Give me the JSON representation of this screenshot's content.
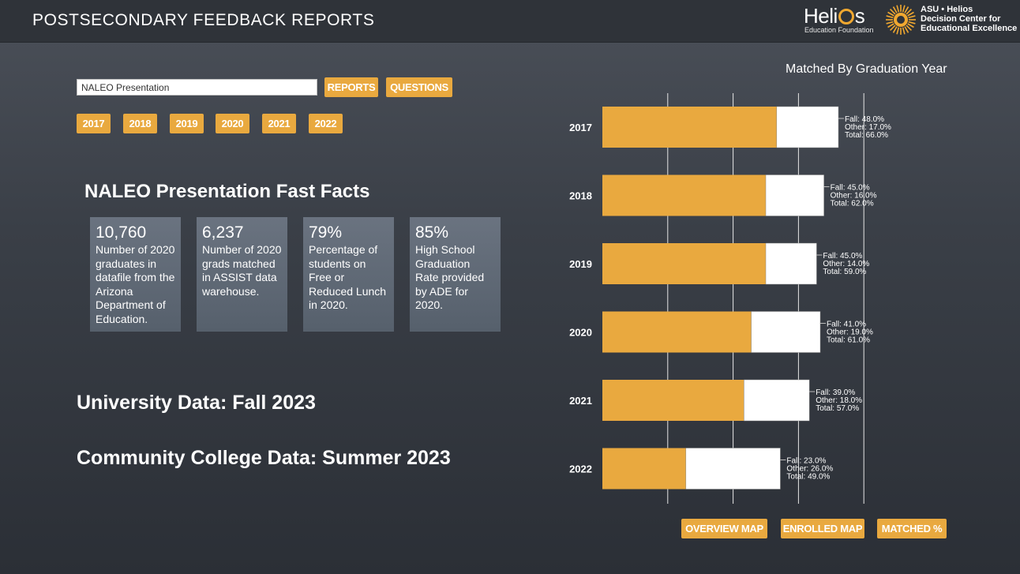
{
  "header": {
    "title": "POSTSECONDARY FEEDBACK REPORTS",
    "helios_logo_text": "Helios",
    "helios_subtitle": "Education Foundation",
    "asu_logo_text": "ASU • Helios Decision Center for Educational Excellence",
    "asu_line1": "ASU • Helios",
    "asu_line2": "Decision Center for",
    "asu_line3": "Educational Excellence"
  },
  "search": {
    "value": "NALEO Presentation"
  },
  "buttons": {
    "reports": "REPORTS",
    "questions": "QUESTIONS"
  },
  "year_buttons": [
    "2017",
    "2018",
    "2019",
    "2020",
    "2021",
    "2022"
  ],
  "fast_facts": {
    "title": "NALEO Presentation Fast Facts",
    "cards": [
      {
        "value": "10,760",
        "desc": "Number of 2020 graduates in datafile from the Arizona Department of Education."
      },
      {
        "value": "6,237",
        "desc": "Number of 2020 grads matched in ASSIST data warehouse."
      },
      {
        "value": "79%",
        "desc": "Percentage of students on Free or Reduced Lunch in 2020."
      },
      {
        "value": "85%",
        "desc": "High School Graduation Rate provided by ADE for 2020."
      }
    ]
  },
  "sections": {
    "university": "University Data: Fall 2023",
    "community_college": "Community College Data: Summer 2023"
  },
  "bottom_buttons": {
    "overview_map": "OVERVIEW MAP",
    "enrolled_map": "ENROLLED MAP",
    "matched_pct": "MATCHED %"
  },
  "colors": {
    "accent": "#e9a93f",
    "bar_fall": "#e9a93f",
    "bar_other": "#ffffff",
    "header_bg": "#2f3339"
  },
  "chart_data": {
    "type": "bar",
    "orientation": "horizontal",
    "stacked": true,
    "title": "Matched By Graduation Year",
    "categories": [
      "2017",
      "2018",
      "2019",
      "2020",
      "2021",
      "2022"
    ],
    "series": [
      {
        "name": "Fall",
        "values": [
          48.0,
          45.0,
          45.0,
          41.0,
          39.0,
          23.0
        ]
      },
      {
        "name": "Other",
        "values": [
          17.0,
          16.0,
          14.0,
          19.0,
          18.0,
          26.0
        ]
      }
    ],
    "totals": [
      66.0,
      62.0,
      59.0,
      61.0,
      57.0,
      49.0
    ],
    "labels": [
      [
        "Fall: 48.0%",
        "Other: 17.0%",
        "Total: 66.0%"
      ],
      [
        "Fall: 45.0%",
        "Other: 16.0%",
        "Total: 62.0%"
      ],
      [
        "Fall: 45.0%",
        "Other: 14.0%",
        "Total: 59.0%"
      ],
      [
        "Fall: 41.0%",
        "Other: 19.0%",
        "Total: 61.0%"
      ],
      [
        "Fall: 39.0%",
        "Other: 18.0%",
        "Total: 57.0%"
      ],
      [
        "Fall: 23.0%",
        "Other: 26.0%",
        "Total: 49.0%"
      ]
    ],
    "xlim": [
      0,
      83
    ],
    "gridlines": [
      18,
      36,
      54,
      72
    ],
    "grid": true
  }
}
